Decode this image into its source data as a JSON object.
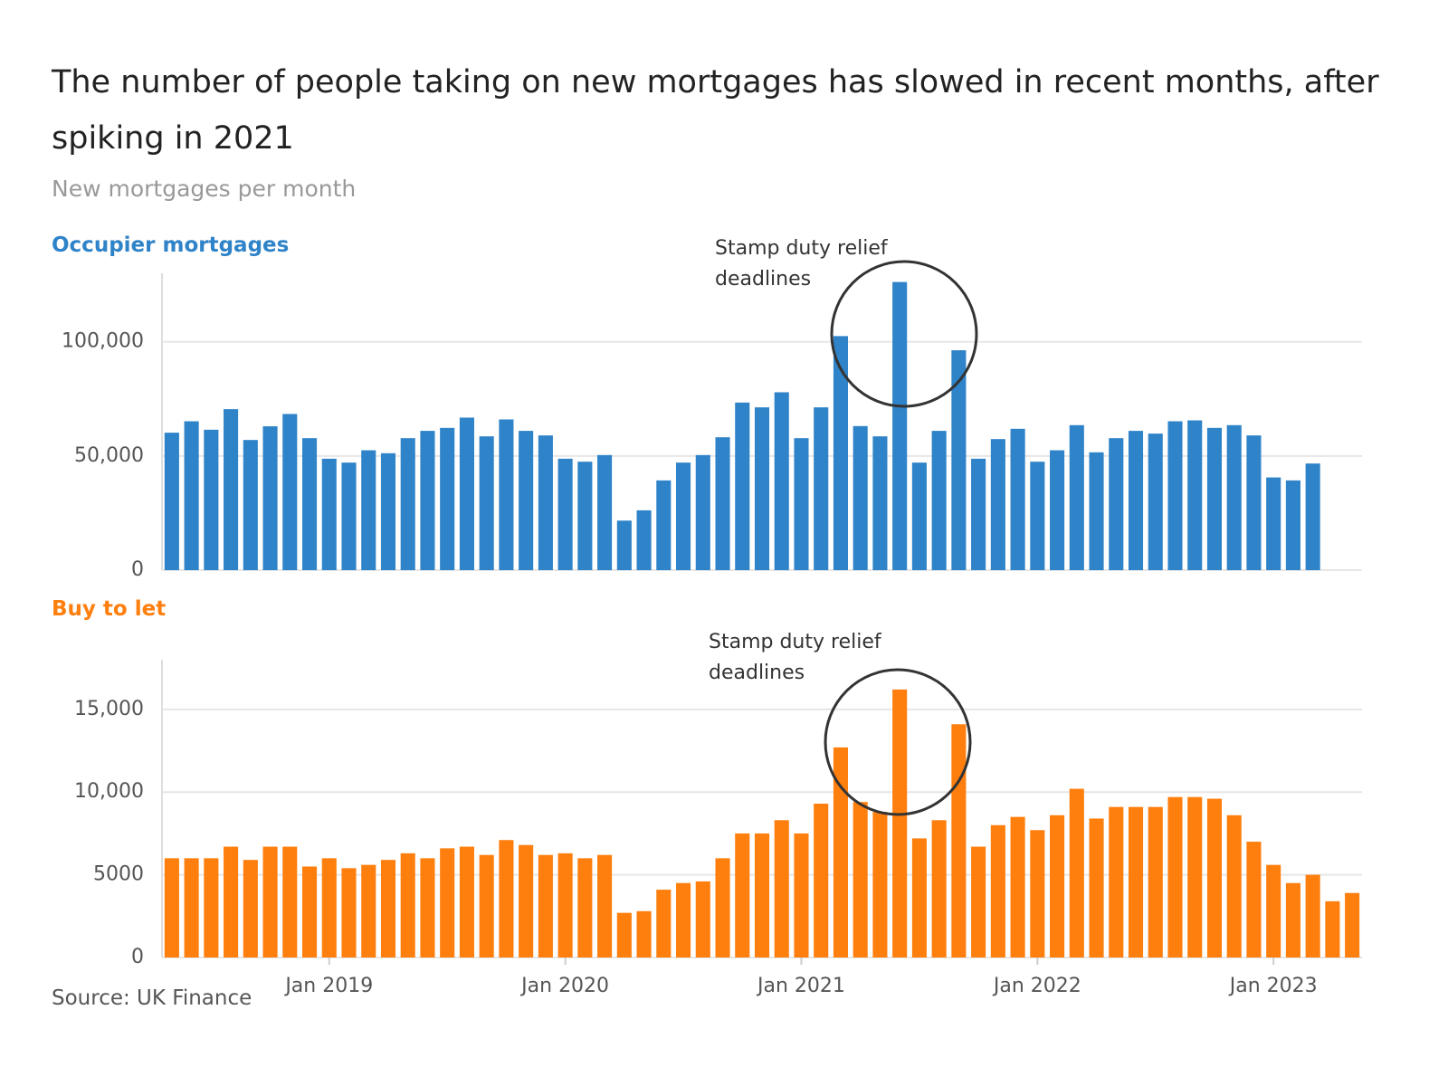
{
  "title": "The number of people taking on new mortgages has slowed in recent months, after spiking in 2021",
  "subtitle": "New mortgages per month",
  "source": "Source: UK Finance",
  "chart_data": [
    {
      "type": "bar",
      "title": "Occupier mortgages",
      "color": "#2f83c8",
      "annotation": "Stamp duty relief deadlines",
      "x": [
        "2018-05",
        "2018-06",
        "2018-07",
        "2018-08",
        "2018-09",
        "2018-10",
        "2018-11",
        "2018-12",
        "2019-01",
        "2019-02",
        "2019-03",
        "2019-04",
        "2019-05",
        "2019-06",
        "2019-07",
        "2019-08",
        "2019-09",
        "2019-10",
        "2019-11",
        "2019-12",
        "2020-01",
        "2020-02",
        "2020-03",
        "2020-04",
        "2020-05",
        "2020-06",
        "2020-07",
        "2020-08",
        "2020-09",
        "2020-10",
        "2020-11",
        "2020-12",
        "2021-01",
        "2021-02",
        "2021-03",
        "2021-04",
        "2021-05",
        "2021-06",
        "2021-07",
        "2021-08",
        "2021-09",
        "2021-10",
        "2021-11",
        "2021-12",
        "2022-01",
        "2022-02",
        "2022-03",
        "2022-04",
        "2022-05",
        "2022-06",
        "2022-07",
        "2022-08",
        "2022-09",
        "2022-10",
        "2022-11",
        "2022-12",
        "2023-01",
        "2023-02",
        "2023-03",
        "2023-04",
        "2023-05"
      ],
      "values": [
        60200,
        65200,
        61500,
        70500,
        57000,
        63000,
        68400,
        57800,
        48800,
        47100,
        52500,
        51200,
        57800,
        61000,
        62300,
        66800,
        58600,
        66000,
        61000,
        59000,
        48800,
        47500,
        50400,
        21700,
        26200,
        39300,
        47100,
        50400,
        58200,
        73400,
        71300,
        77900,
        57800,
        71300,
        102500,
        63100,
        58600,
        126200,
        47100,
        61000,
        96300,
        48800,
        57400,
        61900,
        47500,
        52500,
        63500,
        51600,
        57800,
        61000,
        59800,
        65200,
        65600,
        62300,
        63500,
        59000,
        40600,
        39300,
        46700,
        null,
        null
      ],
      "ylim": [
        0,
        130000
      ],
      "yticks": [
        0,
        {
          "value": 50000,
          "label": "50,000"
        },
        {
          "value": 100000,
          "label": "100,000"
        }
      ],
      "grid": true
    },
    {
      "type": "bar",
      "title": "Buy to let",
      "color": "#ff7f0e",
      "annotation": "Stamp duty relief deadlines",
      "x": [
        "2018-05",
        "2018-06",
        "2018-07",
        "2018-08",
        "2018-09",
        "2018-10",
        "2018-11",
        "2018-12",
        "2019-01",
        "2019-02",
        "2019-03",
        "2019-04",
        "2019-05",
        "2019-06",
        "2019-07",
        "2019-08",
        "2019-09",
        "2019-10",
        "2019-11",
        "2019-12",
        "2020-01",
        "2020-02",
        "2020-03",
        "2020-04",
        "2020-05",
        "2020-06",
        "2020-07",
        "2020-08",
        "2020-09",
        "2020-10",
        "2020-11",
        "2020-12",
        "2021-01",
        "2021-02",
        "2021-03",
        "2021-04",
        "2021-05",
        "2021-06",
        "2021-07",
        "2021-08",
        "2021-09",
        "2021-10",
        "2021-11",
        "2021-12",
        "2022-01",
        "2022-02",
        "2022-03",
        "2022-04",
        "2022-05",
        "2022-06",
        "2022-07",
        "2022-08",
        "2022-09",
        "2022-10",
        "2022-11",
        "2022-12",
        "2023-01",
        "2023-02",
        "2023-03",
        "2023-04",
        "2023-05"
      ],
      "values": [
        6000,
        6000,
        6000,
        6700,
        5900,
        6700,
        6700,
        5500,
        6000,
        5400,
        5600,
        5900,
        6300,
        6000,
        6600,
        6700,
        6200,
        7100,
        6800,
        6200,
        6300,
        6000,
        6200,
        2700,
        2800,
        4100,
        4500,
        4600,
        6000,
        7500,
        7500,
        8300,
        7500,
        9300,
        12700,
        9400,
        8800,
        16200,
        7200,
        8300,
        14100,
        6700,
        8000,
        8500,
        7700,
        8600,
        10200,
        8400,
        9100,
        9100,
        9100,
        9700,
        9700,
        9600,
        8600,
        7000,
        5600,
        4500,
        5000,
        3400,
        3900
      ],
      "ylim": [
        0,
        18000
      ],
      "yticks": [
        0,
        5000,
        {
          "value": 10000,
          "label": "10,000"
        },
        {
          "value": 15000,
          "label": "15,000"
        }
      ],
      "xticks": [
        {
          "value": "2019-01",
          "label": "Jan 2019"
        },
        {
          "value": "2020-01",
          "label": "Jan 2020"
        },
        {
          "value": "2021-01",
          "label": "Jan 2021"
        },
        {
          "value": "2022-01",
          "label": "Jan 2022"
        },
        {
          "value": "2023-01",
          "label": "Jan 2023"
        }
      ],
      "grid": true
    }
  ]
}
